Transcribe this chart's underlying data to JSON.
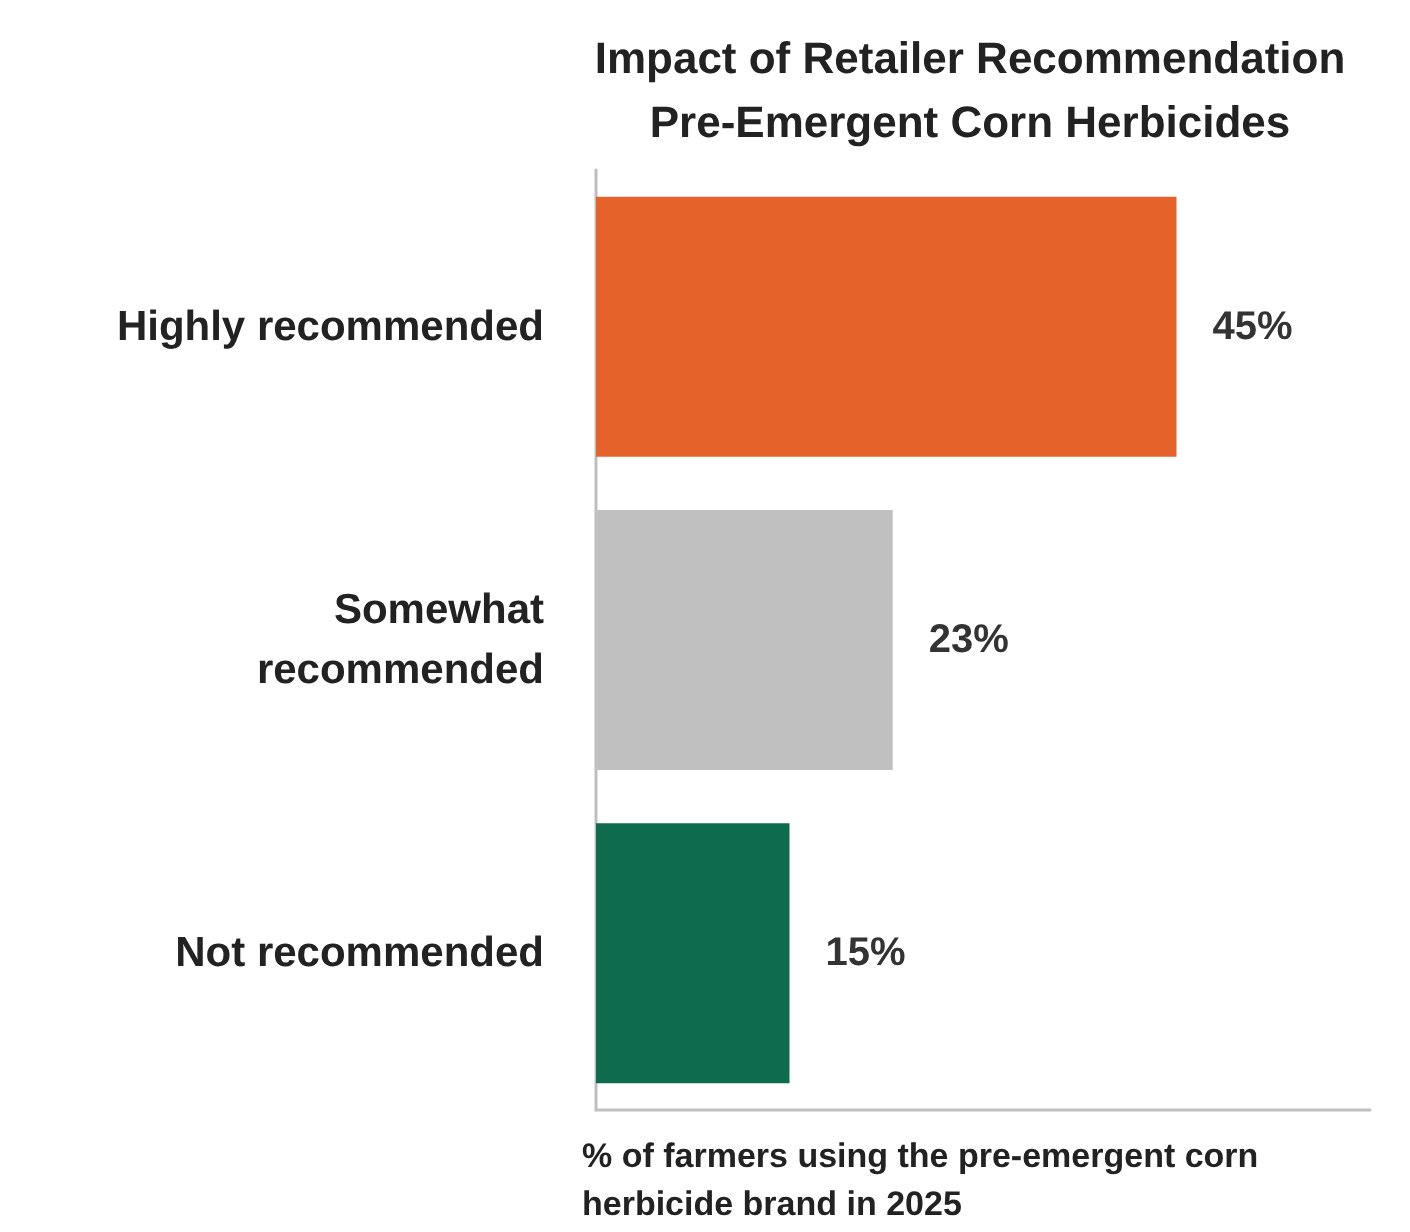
{
  "chart_data": {
    "type": "bar",
    "orientation": "horizontal",
    "title": "Impact of Retailer Recommendation\nPre-Emergent Corn Herbicides",
    "categories": [
      "Highly recommended",
      "Somewhat\nrecommended",
      "Not recommended"
    ],
    "values": [
      45,
      23,
      15
    ],
    "colors": [
      "#e5622a",
      "#c0c0c0",
      "#0e6b4e"
    ],
    "value_labels": [
      "45%",
      "23%",
      "15%"
    ],
    "xlabel": "% of farmers using the pre-emergent corn herbicide brand in 2025",
    "xlim": [
      0,
      60
    ],
    "grid": false,
    "tick_labels": "y"
  }
}
